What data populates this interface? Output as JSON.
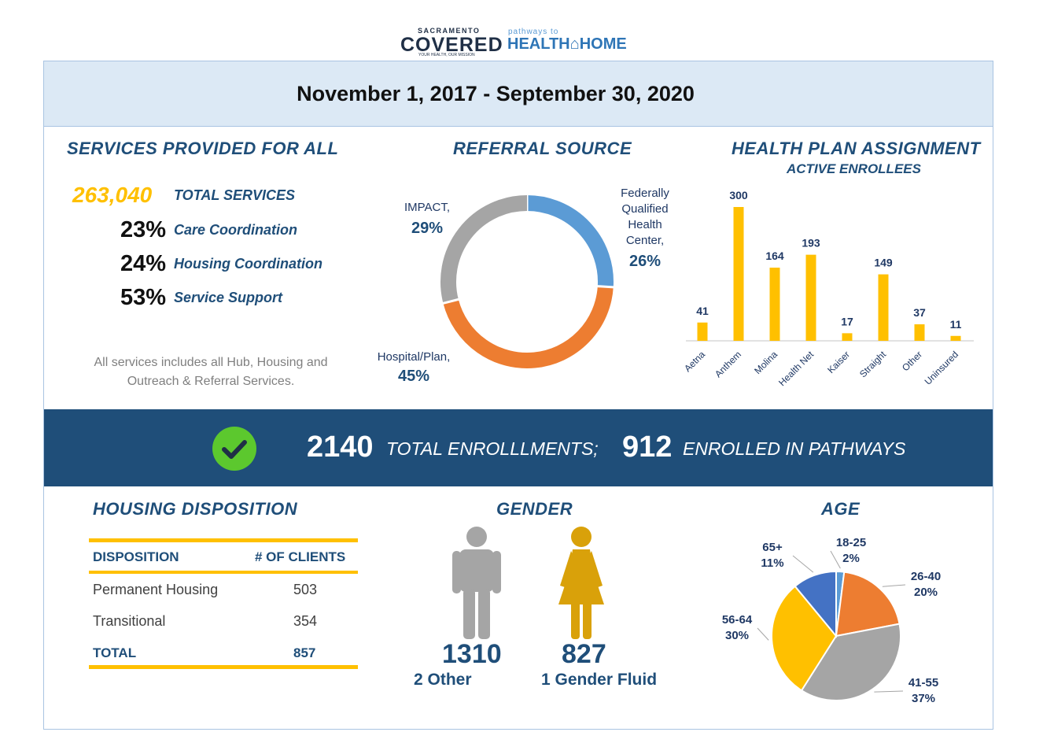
{
  "logo": {
    "line1": "SACRAMENTO",
    "line2": "COVERED",
    "tagline": "YOUR HEALTH, OUR MISSION",
    "right_small": "pathways to",
    "right_big": "HEALTH⌂HOME"
  },
  "date_range": "November 1, 2017 - September 30, 2020",
  "services": {
    "title": "SERVICES PROVIDED FOR ALL",
    "total_value": "263,040",
    "total_label": "TOTAL SERVICES",
    "items": [
      {
        "pct": "23%",
        "label": "Care Coordination"
      },
      {
        "pct": "24%",
        "label": "Housing Coordination"
      },
      {
        "pct": "53%",
        "label": "Service Support"
      }
    ],
    "note_line1": "All services includes all Hub, Housing and",
    "note_line2": "Outreach & Referral Services."
  },
  "referral": {
    "title": "REFERRAL SOURCE",
    "labels": {
      "impact_name": "IMPACT,",
      "impact_pct": "29%",
      "fqhc_l1": "Federally",
      "fqhc_l2": "Qualified",
      "fqhc_l3": "Health",
      "fqhc_l4": "Center,",
      "fqhc_pct": "26%",
      "hosp_name": "Hospital/Plan,",
      "hosp_pct": "45%"
    }
  },
  "health_plan": {
    "title": "HEALTH PLAN ASSIGNMENT",
    "subtitle": "ACTIVE ENROLLEES"
  },
  "banner": {
    "total_num": "2140",
    "total_txt": "TOTAL ENROLLLMENTS;",
    "pathways_num": "912",
    "pathways_txt": "ENROLLED IN PATHWAYS"
  },
  "housing": {
    "title": "HOUSING DISPOSITION",
    "col1": "DISPOSITION",
    "col2": "# OF CLIENTS",
    "rows": [
      {
        "label": "Permanent Housing",
        "value": "503"
      },
      {
        "label": "Transitional",
        "value": "354"
      }
    ],
    "total_label": "TOTAL",
    "total_value": "857"
  },
  "gender": {
    "title": "GENDER",
    "male_value": "1310",
    "male_sub": "2 Other",
    "female_value": "827",
    "female_sub": "1 Gender Fluid"
  },
  "age": {
    "title": "AGE"
  },
  "chart_data": [
    {
      "type": "pie",
      "title": "REFERRAL SOURCE",
      "style": "donut",
      "categories": [
        "Federally Qualified Health Center",
        "Hospital/Plan",
        "IMPACT"
      ],
      "values": [
        26,
        45,
        29
      ],
      "colors": [
        "#5b9bd5",
        "#ed7d31",
        "#a5a5a5"
      ]
    },
    {
      "type": "bar",
      "title": "HEALTH PLAN ASSIGNMENT",
      "subtitle": "ACTIVE ENROLLEES",
      "categories": [
        "Aetna",
        "Anthem",
        "Molina",
        "Health Net",
        "Kaiser",
        "Straight",
        "Other",
        "Uninsured"
      ],
      "values": [
        41,
        300,
        164,
        193,
        17,
        149,
        37,
        11
      ],
      "ylim": [
        0,
        300
      ],
      "color": "#ffc000"
    },
    {
      "type": "pie",
      "title": "AGE",
      "categories": [
        "18-25",
        "26-40",
        "41-55",
        "56-64",
        "65+"
      ],
      "values": [
        2,
        20,
        37,
        30,
        11
      ],
      "labels": [
        "2%",
        "20%",
        "37%",
        "30%",
        "11%"
      ],
      "colors": [
        "#5b9bd5",
        "#ed7d31",
        "#a5a5a5",
        "#ffc000",
        "#4472c4"
      ]
    }
  ]
}
